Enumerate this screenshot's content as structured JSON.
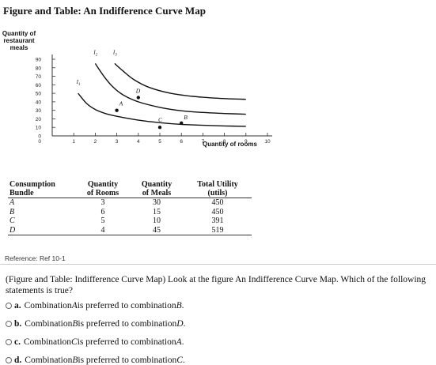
{
  "header": {
    "title": "Figure and Table: An Indifference Curve Map"
  },
  "chart_data": {
    "type": "line",
    "ylabel": "Quantity of restaurant meals",
    "ylabel_lines": [
      "Quantity of",
      "restaurant",
      "meals"
    ],
    "xlabel": "Quantity of rooms",
    "xlim": [
      0,
      10
    ],
    "ylim": [
      0,
      90
    ],
    "x_ticks": [
      "0",
      "1",
      "2",
      "3",
      "4",
      "5",
      "6",
      "7",
      "8",
      "9",
      "10"
    ],
    "y_ticks": [
      "0",
      "10",
      "20",
      "30",
      "40",
      "50",
      "60",
      "70",
      "80",
      "90"
    ],
    "series": [
      {
        "name": "I1",
        "label": "I",
        "sub": "1",
        "points": [
          [
            1.2,
            50
          ],
          [
            1.6,
            38
          ],
          [
            2.0,
            31
          ],
          [
            2.5,
            26
          ],
          [
            3.0,
            23
          ],
          [
            4.0,
            18.5
          ],
          [
            5.0,
            15.5
          ],
          [
            6.0,
            13.5
          ],
          [
            7.0,
            12.5
          ],
          [
            8.0,
            11.7
          ],
          [
            9.0,
            11.2
          ]
        ]
      },
      {
        "name": "I2",
        "label": "I",
        "sub": "2",
        "points": [
          [
            2.0,
            85
          ],
          [
            2.4,
            70
          ],
          [
            2.8,
            58
          ],
          [
            3.3,
            48
          ],
          [
            4.0,
            40
          ],
          [
            5.0,
            33.5
          ],
          [
            6.0,
            29.5
          ],
          [
            7.0,
            27.5
          ],
          [
            8.0,
            26.3
          ],
          [
            9.0,
            25.5
          ]
        ]
      },
      {
        "name": "I3",
        "label": "I",
        "sub": "3",
        "points": [
          [
            2.9,
            85
          ],
          [
            3.3,
            76
          ],
          [
            3.8,
            66
          ],
          [
            4.5,
            57
          ],
          [
            5.5,
            50
          ],
          [
            6.5,
            46.5
          ],
          [
            7.5,
            44.5
          ],
          [
            8.5,
            43.3
          ],
          [
            9.0,
            43
          ]
        ]
      }
    ],
    "points_labeled": [
      {
        "label": "A",
        "x": 3,
        "y": 30
      },
      {
        "label": "B",
        "x": 6,
        "y": 15
      },
      {
        "label": "C",
        "x": 5,
        "y": 10
      },
      {
        "label": "D",
        "x": 4,
        "y": 45
      }
    ],
    "grid": false
  },
  "table": {
    "headers": [
      [
        "Consumption",
        "Bundle"
      ],
      [
        "Quantity",
        "of Rooms"
      ],
      [
        "Quantity",
        "of Meals"
      ],
      [
        "Total Utility",
        "(utils)"
      ]
    ],
    "rows": [
      {
        "bundle": "A",
        "rooms": "3",
        "meals": "30",
        "utility": "450"
      },
      {
        "bundle": "B",
        "rooms": "6",
        "meals": "15",
        "utility": "450"
      },
      {
        "bundle": "C",
        "rooms": "5",
        "meals": "10",
        "utility": "391"
      },
      {
        "bundle": "D",
        "rooms": "4",
        "meals": "45",
        "utility": "519"
      }
    ]
  },
  "reference": "Reference: Ref 10-1",
  "question": "(Figure and Table: Indifference Curve Map) Look at the figure An Indifference Curve Map. Which of the following statements is true?",
  "options": [
    {
      "letter": "a.",
      "pre": "Combination ",
      "x": "A",
      "mid": " is preferred to combination ",
      "y": "B",
      "post": "."
    },
    {
      "letter": "b.",
      "pre": "Combination ",
      "x": "B",
      "mid": " is preferred to combination ",
      "y": "D",
      "post": "."
    },
    {
      "letter": "c.",
      "pre": "Combination ",
      "x": "C",
      "mid": " is preferred to combination ",
      "y": "A",
      "post": "."
    },
    {
      "letter": "d.",
      "pre": "Combination ",
      "x": "B",
      "mid": " is preferred to combination ",
      "y": "C",
      "post": "."
    }
  ]
}
